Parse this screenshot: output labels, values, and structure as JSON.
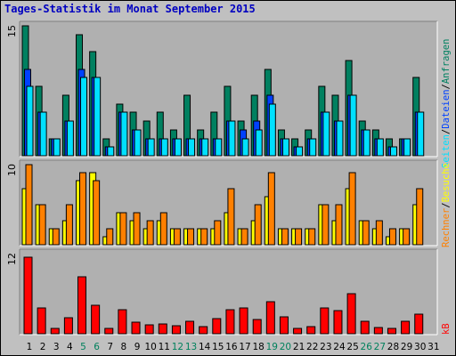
{
  "title": "Tages-Statistik im Monat September 2015",
  "colors": {
    "background": "#C0C0C0",
    "plot_bg": "#B0B0B0",
    "hits": "#008060",
    "files": "#0040FF",
    "pages": "#00E0FF",
    "visits": "#FFFF00",
    "sites": "#FF8000",
    "kbytes": "#FF0000",
    "weekend_label": "#00805C",
    "weekday_label": "#000000",
    "title": "#0000C0"
  },
  "right_labels": {
    "top": [
      "Anfragen",
      "/",
      "Dateien",
      "/",
      "Seiten"
    ],
    "middle": [
      "Besuche",
      "/",
      "Rechner"
    ],
    "bottom": [
      "kB"
    ]
  },
  "chart_data": [
    {
      "type": "bar",
      "name": "top",
      "y_tick_label": "15",
      "ylim": [
        0,
        15
      ],
      "categories": [
        "1",
        "2",
        "3",
        "4",
        "5",
        "6",
        "7",
        "8",
        "9",
        "10",
        "11",
        "12",
        "13",
        "14",
        "15",
        "16",
        "17",
        "18",
        "19",
        "20",
        "21",
        "22",
        "23",
        "24",
        "25",
        "26",
        "27",
        "28",
        "29",
        "30",
        "31"
      ],
      "weekend_days": [
        5,
        6,
        12,
        13,
        19,
        20,
        26,
        27
      ],
      "series": [
        {
          "name": "Anfragen",
          "values": [
            15,
            8,
            2,
            7,
            14,
            12,
            2,
            6,
            5,
            4,
            5,
            3,
            7,
            3,
            5,
            8,
            4,
            7,
            10,
            3,
            2,
            3,
            8,
            7,
            11,
            4,
            3,
            2,
            2,
            9,
            0
          ]
        },
        {
          "name": "Dateien",
          "values": [
            10,
            5,
            2,
            4,
            10,
            9,
            1,
            5,
            3,
            2,
            2,
            2,
            2,
            2,
            2,
            4,
            3,
            4,
            7,
            2,
            1,
            2,
            5,
            4,
            7,
            3,
            2,
            1,
            2,
            5,
            0
          ]
        },
        {
          "name": "Seiten",
          "values": [
            8,
            5,
            2,
            4,
            9,
            9,
            1,
            5,
            3,
            2,
            2,
            2,
            2,
            2,
            2,
            4,
            2,
            3,
            6,
            2,
            1,
            2,
            5,
            4,
            7,
            3,
            2,
            1,
            2,
            5,
            0
          ]
        }
      ]
    },
    {
      "type": "bar",
      "name": "middle",
      "y_tick_label": "10",
      "ylim": [
        0,
        10
      ],
      "series": [
        {
          "name": "Besuche",
          "values": [
            7,
            5,
            2,
            3,
            8,
            9,
            1,
            4,
            3,
            2,
            3,
            2,
            2,
            2,
            2,
            4,
            2,
            3,
            6,
            2,
            2,
            2,
            5,
            3,
            7,
            3,
            2,
            1,
            2,
            5,
            0
          ]
        },
        {
          "name": "Rechner",
          "values": [
            10,
            5,
            2,
            5,
            9,
            8,
            2,
            4,
            4,
            3,
            4,
            2,
            2,
            2,
            3,
            7,
            2,
            5,
            9,
            2,
            2,
            2,
            5,
            5,
            9,
            3,
            3,
            2,
            2,
            7,
            0
          ]
        }
      ]
    },
    {
      "type": "bar",
      "name": "bottom",
      "y_tick_label": "12",
      "ylim": [
        0,
        12
      ],
      "series": [
        {
          "name": "kB",
          "values": [
            11.5,
            3.9,
            0.8,
            2.4,
            8.5,
            4.3,
            0.8,
            3.6,
            1.7,
            1.4,
            1.5,
            1.2,
            1.9,
            1.1,
            2.2,
            3.6,
            3.9,
            2.1,
            4.8,
            2.5,
            0.8,
            1.1,
            3.9,
            3.5,
            6.0,
            1.8,
            0.9,
            0.8,
            1.9,
            2.9,
            0
          ]
        }
      ]
    }
  ]
}
